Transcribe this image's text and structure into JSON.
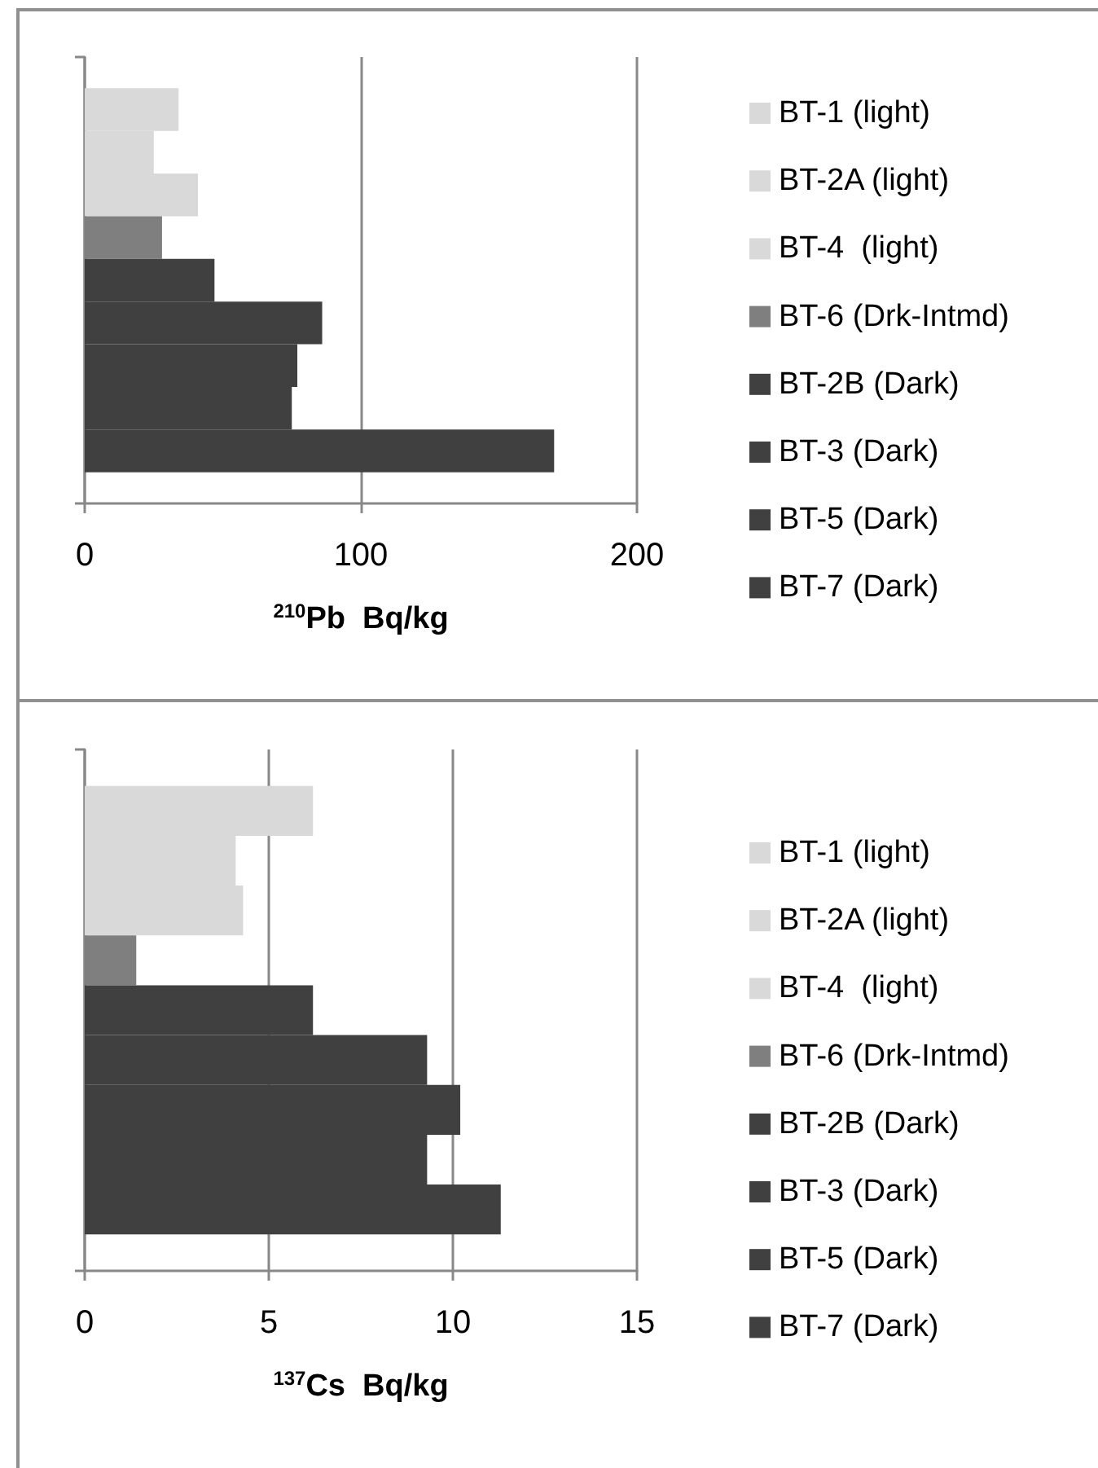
{
  "chart_data": [
    {
      "type": "bar",
      "orientation": "horizontal",
      "xlabel": "$^{210}$Pb  Bq/kg",
      "categories": [
        null
      ],
      "xlim": [
        0,
        200
      ],
      "xticks": [
        0,
        100,
        200
      ],
      "grid": "x",
      "legend": "right",
      "series": [
        {
          "name": "BT-1 (light)",
          "color": "#d9d9d9",
          "values": [
            34
          ]
        },
        {
          "name": "BT-2A (light)",
          "color": "#d9d9d9",
          "values": [
            25
          ]
        },
        {
          "name": "BT-4  (light)",
          "color": "#d9d9d9",
          "values": [
            41
          ]
        },
        {
          "name": "BT-6 (Drk-Intmd)",
          "color": "#7f7f7f",
          "values": [
            28
          ]
        },
        {
          "name": "BT-2B (Dark)",
          "color": "#404040",
          "values": [
            47
          ]
        },
        {
          "name": "BT-3 (Dark)",
          "color": "#404040",
          "values": [
            86
          ]
        },
        {
          "name": "BT-5 (Dark)",
          "color": "#404040",
          "values": [
            77
          ]
        },
        {
          "name": "BT-7 (Dark)",
          "color": "#404040",
          "values": [
            75
          ]
        },
        {
          "color": "#404040",
          "values": [
            170
          ]
        }
      ]
    },
    {
      "type": "bar",
      "orientation": "horizontal",
      "xlabel": "$^{137}$Cs  Bq/kg",
      "categories": [
        null
      ],
      "xlim": [
        0,
        15
      ],
      "xticks": [
        0,
        5,
        10,
        15
      ],
      "grid": "x",
      "legend": "right",
      "series": [
        {
          "name": "BT-1 (light)",
          "color": "#d9d9d9",
          "values": [
            6.2
          ]
        },
        {
          "name": "BT-2A (light)",
          "color": "#d9d9d9",
          "values": [
            4.1
          ]
        },
        {
          "name": "BT-4  (light)",
          "color": "#d9d9d9",
          "values": [
            4.3
          ]
        },
        {
          "name": "BT-6 (Drk-Intmd)",
          "color": "#7f7f7f",
          "values": [
            1.4
          ]
        },
        {
          "name": "BT-2B (Dark)",
          "color": "#404040",
          "values": [
            6.2
          ]
        },
        {
          "name": "BT-3 (Dark)",
          "color": "#404040",
          "values": [
            9.3
          ]
        },
        {
          "name": "BT-5 (Dark)",
          "color": "#404040",
          "values": [
            10.2
          ]
        },
        {
          "name": "BT-7 (Dark)",
          "color": "#404040",
          "values": [
            9.3
          ]
        },
        {
          "color": "#404040",
          "values": [
            11.3
          ]
        }
      ]
    }
  ]
}
